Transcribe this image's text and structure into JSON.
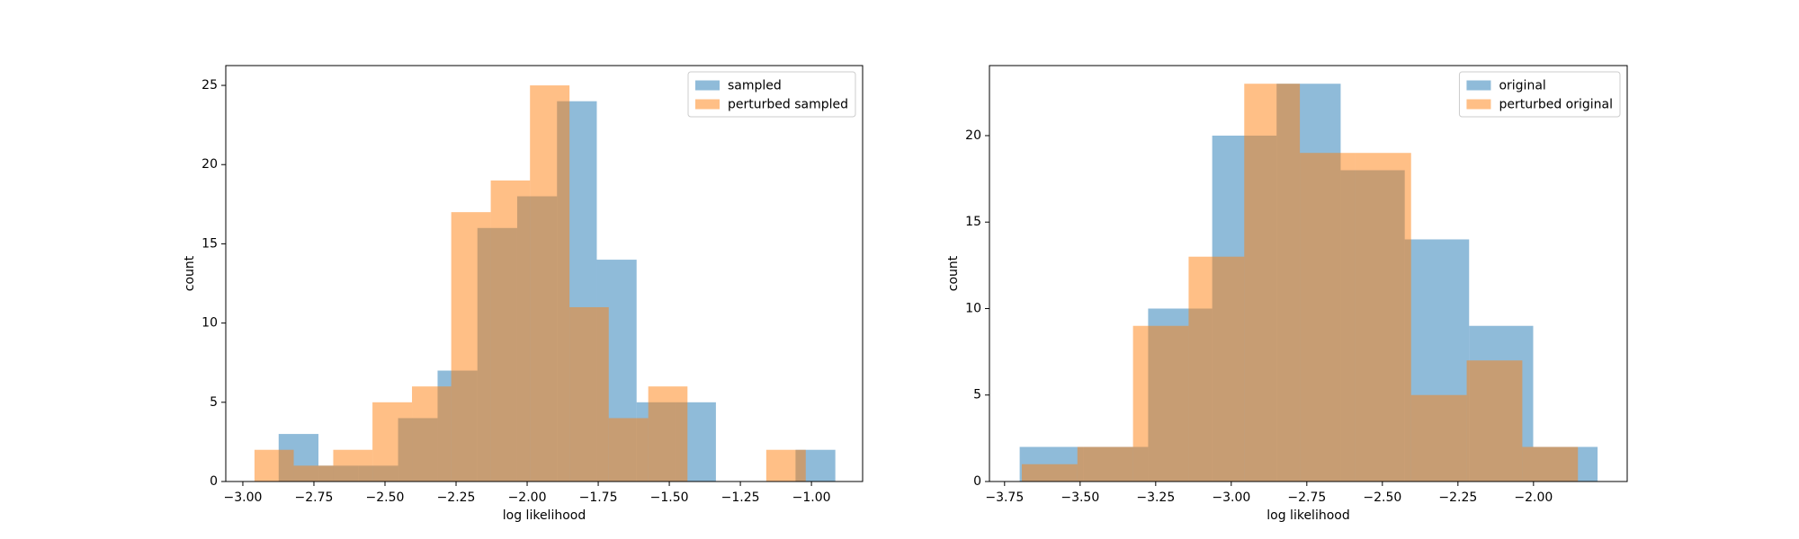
{
  "chart_data": [
    {
      "type": "histogram",
      "xlabel": "log likelihood",
      "ylabel": "count",
      "legend": "upper right",
      "alpha": 0.5,
      "xlim": [
        -3.06,
        -0.82
      ],
      "ylim": [
        0,
        26.25
      ],
      "xticks": [
        {
          "value": -3.0,
          "label": "−3.00"
        },
        {
          "value": -2.75,
          "label": "−2.75"
        },
        {
          "value": -2.5,
          "label": "−2.50"
        },
        {
          "value": -2.25,
          "label": "−2.25"
        },
        {
          "value": -2.0,
          "label": "−2.00"
        },
        {
          "value": -1.75,
          "label": "−1.75"
        },
        {
          "value": -1.5,
          "label": "−1.50"
        },
        {
          "value": -1.25,
          "label": "−1.25"
        },
        {
          "value": -1.0,
          "label": "−1.00"
        }
      ],
      "yticks": [
        0,
        5,
        10,
        15,
        20,
        25
      ],
      "series": [
        {
          "name": "sampled",
          "color": "#1f77b4",
          "bins": [
            -2.874,
            -2.734,
            -2.594,
            -2.454,
            -2.315,
            -2.175,
            -2.035,
            -1.895,
            -1.755,
            -1.615,
            -1.475,
            -1.336,
            -1.196,
            -1.056,
            -0.916
          ],
          "values": [
            3,
            1,
            1,
            4,
            7,
            16,
            18,
            24,
            14,
            5,
            5,
            0,
            0,
            2
          ]
        },
        {
          "name": "perturbed sampled",
          "color": "#ff7f0e",
          "bins": [
            -2.959,
            -2.821,
            -2.682,
            -2.544,
            -2.405,
            -2.267,
            -2.128,
            -1.99,
            -1.851,
            -1.713,
            -1.574,
            -1.436,
            -1.297,
            -1.159,
            -1.02
          ],
          "values": [
            2,
            1,
            2,
            5,
            6,
            17,
            19,
            25,
            11,
            4,
            6,
            0,
            0,
            2
          ]
        }
      ]
    },
    {
      "type": "histogram",
      "xlabel": "log likelihood",
      "ylabel": "count",
      "legend": "upper right",
      "alpha": 0.5,
      "xlim": [
        -3.8,
        -1.69
      ],
      "ylim": [
        0,
        24.05
      ],
      "xticks": [
        {
          "value": -3.75,
          "label": "−3.75"
        },
        {
          "value": -3.5,
          "label": "−3.50"
        },
        {
          "value": -3.25,
          "label": "−3.25"
        },
        {
          "value": -3.0,
          "label": "−3.00"
        },
        {
          "value": -2.75,
          "label": "−2.75"
        },
        {
          "value": -2.5,
          "label": "−2.50"
        },
        {
          "value": -2.25,
          "label": "−2.25"
        },
        {
          "value": -2.0,
          "label": "−2.00"
        }
      ],
      "yticks": [
        0,
        5,
        10,
        15,
        20
      ],
      "series": [
        {
          "name": "original",
          "color": "#1f77b4",
          "bins": [
            -3.7,
            -3.488,
            -3.275,
            -3.063,
            -2.85,
            -2.638,
            -2.426,
            -2.213,
            -2.001,
            -1.788
          ],
          "values": [
            2,
            2,
            10,
            20,
            23,
            18,
            14,
            9,
            2
          ]
        },
        {
          "name": "perturbed original",
          "color": "#ff7f0e",
          "bins": [
            -3.693,
            -3.509,
            -3.325,
            -3.141,
            -2.957,
            -2.773,
            -2.589,
            -2.405,
            -2.221,
            -2.037,
            -1.853
          ],
          "values": [
            1,
            2,
            9,
            13,
            23,
            19,
            19,
            5,
            7,
            2
          ]
        }
      ]
    }
  ]
}
